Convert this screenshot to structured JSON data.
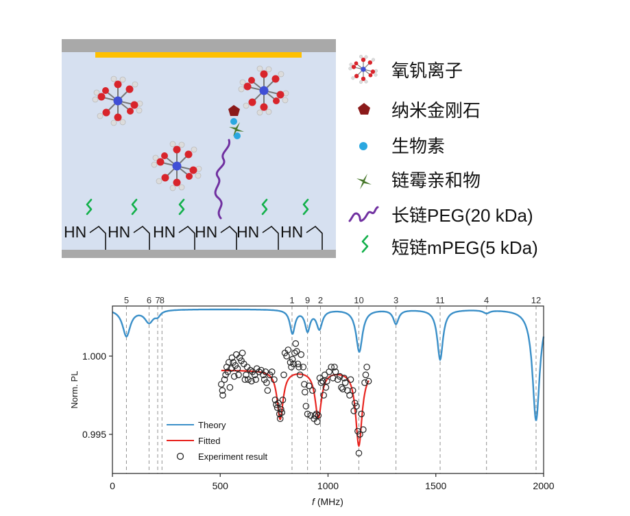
{
  "diagram": {
    "surface_label": "HN",
    "legend": [
      {
        "icon": "vanadyl-ion-icon",
        "label": "氧钒离子"
      },
      {
        "icon": "nanodiamond-icon",
        "label": "纳米金刚石"
      },
      {
        "icon": "biotin-icon",
        "label": "生物素"
      },
      {
        "icon": "streptavidin-icon",
        "label": "链霉亲和物"
      },
      {
        "icon": "long-peg-icon",
        "label": "长链PEG(20 kDa)"
      },
      {
        "icon": "short-mpeg-icon",
        "label": "短链mPEG(5 kDa)"
      }
    ],
    "colors": {
      "chamber": "#d6e0f0",
      "wall": "#a9a9a9",
      "gold_strip": "#ffc000",
      "nanodiamond": "#8b1a1a",
      "biotin": "#2aa7e0",
      "streptavidin": "#4a7a2e",
      "long_peg": "#7030a0",
      "short_mpeg": "#12b04a"
    }
  },
  "chart_data": {
    "type": "line",
    "xlabel_italic": "f",
    "xlabel_unit": " (MHz)",
    "ylabel": "Norm. PL",
    "xlim": [
      0,
      2000
    ],
    "ylim": [
      0.9925,
      1.0032
    ],
    "x_ticks": [
      "0",
      "500",
      "1000",
      "1500",
      "2000"
    ],
    "y_ticks": [
      "0.995",
      "1.000"
    ],
    "y_tick_values": [
      0.995,
      1.0
    ],
    "grid": false,
    "legend_position": "lower-left",
    "colors": {
      "theory": "#3a8fc8",
      "fitted": "#e8241f",
      "experiment": "#222222",
      "vline": "#9a9a9a"
    },
    "transitions": [
      {
        "label": "5",
        "x": 65
      },
      {
        "label": "6",
        "x": 170
      },
      {
        "label": "7",
        "x": 210
      },
      {
        "label": "8",
        "x": 230
      },
      {
        "label": "1",
        "x": 833
      },
      {
        "label": "9",
        "x": 905
      },
      {
        "label": "2",
        "x": 965
      },
      {
        "label": "10",
        "x": 1143
      },
      {
        "label": "3",
        "x": 1315
      },
      {
        "label": "11",
        "x": 1520
      },
      {
        "label": "4",
        "x": 1735
      },
      {
        "label": "12",
        "x": 1965
      }
    ],
    "series": [
      {
        "name": "Theory",
        "baseline": 1.003,
        "dips": [
          {
            "x": 65,
            "depth": 0.0017,
            "width": 22
          },
          {
            "x": 170,
            "depth": 0.0008,
            "width": 25
          },
          {
            "x": 210,
            "depth": 0.0003,
            "width": 15
          },
          {
            "x": 835,
            "depth": 0.0015,
            "width": 14
          },
          {
            "x": 905,
            "depth": 0.0013,
            "width": 14
          },
          {
            "x": 960,
            "depth": 0.0012,
            "width": 16
          },
          {
            "x": 1145,
            "depth": 0.0027,
            "width": 18
          },
          {
            "x": 1315,
            "depth": 0.0009,
            "width": 15
          },
          {
            "x": 1520,
            "depth": 0.0032,
            "width": 16
          },
          {
            "x": 1735,
            "depth": 0.0002,
            "width": 18
          },
          {
            "x": 1965,
            "depth": 0.0071,
            "width": 20
          }
        ]
      },
      {
        "name": "Fitted",
        "x_range": [
          505,
          1190
        ],
        "baseline": 0.9991,
        "dips": [
          {
            "x": 778,
            "depth": 0.0031,
            "width": 17
          },
          {
            "x": 955,
            "depth": 0.003,
            "width": 18
          },
          {
            "x": 1143,
            "depth": 0.0048,
            "width": 18
          }
        ]
      },
      {
        "name": "Experiment result",
        "points": [
          [
            505,
            0.9982
          ],
          [
            510,
            0.9978
          ],
          [
            512,
            0.9975
          ],
          [
            520,
            0.9985
          ],
          [
            525,
            0.9988
          ],
          [
            530,
            0.9993
          ],
          [
            535,
            0.999
          ],
          [
            540,
            0.9996
          ],
          [
            545,
            0.998
          ],
          [
            550,
            0.9992
          ],
          [
            555,
            0.9999
          ],
          [
            560,
            0.9996
          ],
          [
            565,
            0.9987
          ],
          [
            570,
            0.9994
          ],
          [
            575,
            1.0001
          ],
          [
            580,
            0.9992
          ],
          [
            585,
            0.9988
          ],
          [
            590,
            0.9999
          ],
          [
            598,
            0.9997
          ],
          [
            603,
            1.0002
          ],
          [
            610,
            0.9995
          ],
          [
            615,
            0.9985
          ],
          [
            620,
            0.9988
          ],
          [
            625,
            0.9993
          ],
          [
            630,
            0.9985
          ],
          [
            640,
            0.9991
          ],
          [
            645,
            0.9984
          ],
          [
            650,
            0.999
          ],
          [
            660,
            0.9988
          ],
          [
            665,
            0.9985
          ],
          [
            670,
            0.9992
          ],
          [
            680,
            0.999
          ],
          [
            690,
            0.9991
          ],
          [
            700,
            0.9988
          ],
          [
            705,
            0.9985
          ],
          [
            710,
            0.999
          ],
          [
            715,
            0.9983
          ],
          [
            720,
            0.9978
          ],
          [
            730,
            0.9988
          ],
          [
            740,
            0.999
          ],
          [
            750,
            0.9985
          ],
          [
            755,
            0.9972
          ],
          [
            760,
            0.9969
          ],
          [
            765,
            0.9967
          ],
          [
            770,
            0.997
          ],
          [
            775,
            0.9963
          ],
          [
            778,
            0.996
          ],
          [
            782,
            0.9966
          ],
          [
            786,
            0.9964
          ],
          [
            790,
            0.9972
          ],
          [
            795,
            0.9988
          ],
          [
            800,
            1.0002
          ],
          [
            808,
            1.0
          ],
          [
            815,
            1.0004
          ],
          [
            825,
            0.9996
          ],
          [
            830,
            0.9993
          ],
          [
            835,
            0.9998
          ],
          [
            840,
            0.9995
          ],
          [
            845,
            1.0002
          ],
          [
            850,
            1.0008
          ],
          [
            855,
            1.0003
          ],
          [
            860,
            0.9995
          ],
          [
            865,
            0.9993
          ],
          [
            870,
            0.9988
          ],
          [
            875,
            1.0001
          ],
          [
            885,
            0.9993
          ],
          [
            890,
            0.9982
          ],
          [
            893,
            0.9977
          ],
          [
            898,
            0.9968
          ],
          [
            905,
            0.9963
          ],
          [
            912,
            0.9981
          ],
          [
            920,
            0.9962
          ],
          [
            928,
            0.9978
          ],
          [
            935,
            0.996
          ],
          [
            940,
            0.9962
          ],
          [
            946,
            0.9963
          ],
          [
            950,
            0.9958
          ],
          [
            955,
            0.9962
          ],
          [
            962,
            0.9986
          ],
          [
            968,
            0.9983
          ],
          [
            975,
            0.9984
          ],
          [
            980,
            0.9975
          ],
          [
            985,
            0.9988
          ],
          [
            990,
            0.998
          ],
          [
            995,
            0.9984
          ],
          [
            1005,
            0.999
          ],
          [
            1015,
            0.9993
          ],
          [
            1023,
            0.9986
          ],
          [
            1030,
            0.9993
          ],
          [
            1035,
            0.999
          ],
          [
            1045,
            0.9985
          ],
          [
            1055,
            0.9987
          ],
          [
            1062,
            0.998
          ],
          [
            1068,
            0.9979
          ],
          [
            1075,
            0.9986
          ],
          [
            1080,
            0.9983
          ],
          [
            1090,
            0.9978
          ],
          [
            1100,
            0.9975
          ],
          [
            1105,
            0.9985
          ],
          [
            1115,
            0.9978
          ],
          [
            1120,
            0.9965
          ],
          [
            1125,
            0.997
          ],
          [
            1132,
            0.9968
          ],
          [
            1138,
            0.9952
          ],
          [
            1143,
            0.9938
          ],
          [
            1148,
            0.995
          ],
          [
            1155,
            0.9963
          ],
          [
            1163,
            0.9953
          ],
          [
            1170,
            0.9983
          ],
          [
            1175,
            0.9988
          ],
          [
            1180,
            0.9993
          ],
          [
            1188,
            0.9984
          ]
        ]
      }
    ]
  }
}
